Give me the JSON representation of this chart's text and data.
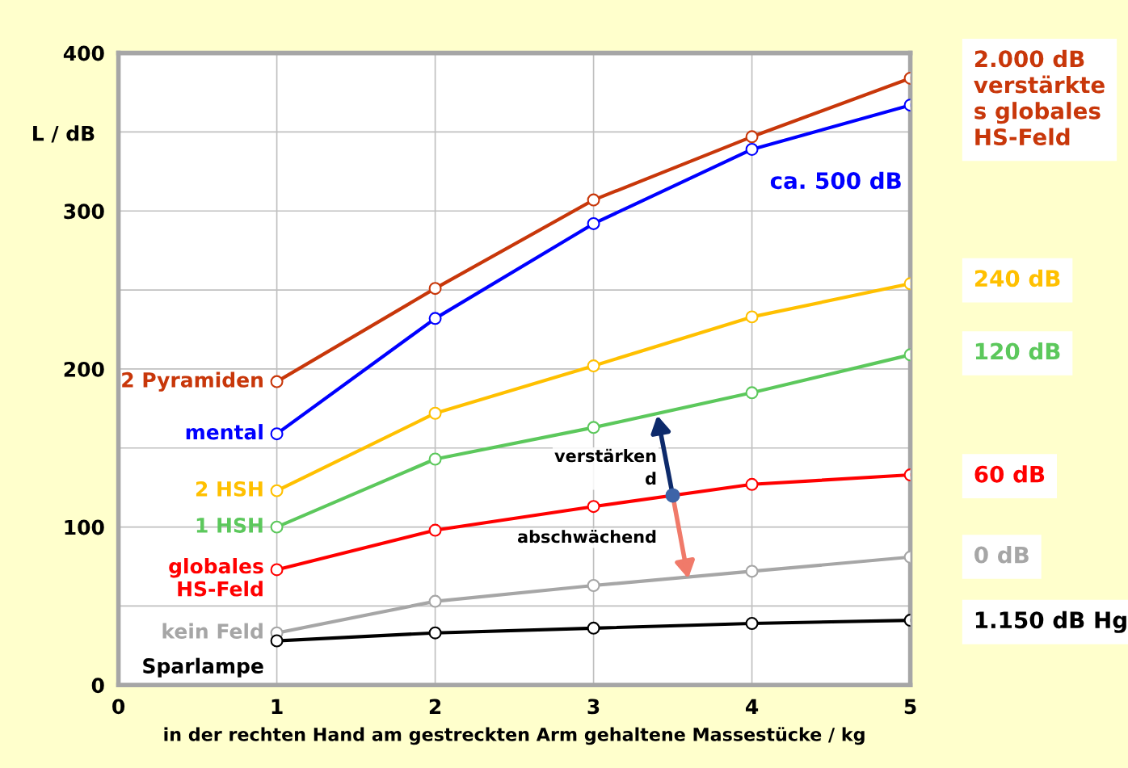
{
  "chart_data": {
    "type": "line",
    "xlabel": "in der rechten Hand am gestreckten Arm gehaltene Massestücke / kg",
    "ylabel": "L / dB",
    "x": [
      1,
      2,
      3,
      4,
      5
    ],
    "xlim": [
      0,
      5
    ],
    "xticks": [
      0,
      1,
      2,
      3,
      4,
      5
    ],
    "ylim": [
      0,
      400
    ],
    "yticks": [
      0,
      {
        "value": 50,
        "label": null
      },
      100,
      {
        "value": 150,
        "label": null
      },
      200,
      {
        "value": 250,
        "label": null
      },
      300,
      {
        "value": 350,
        "label": null
      },
      400
    ],
    "grid": true,
    "marker": "circle",
    "line_style": "solid",
    "legend": false,
    "series": [
      {
        "name": "2 Pyramiden",
        "color": "#c8370a",
        "values": [
          192,
          251,
          307,
          347,
          384
        ]
      },
      {
        "name": "mental",
        "color": "#0000ff",
        "values": [
          159,
          232,
          292,
          339,
          367
        ]
      },
      {
        "name": "2 HSH",
        "color": "#ffc000",
        "values": [
          123,
          172,
          202,
          233,
          254
        ]
      },
      {
        "name": "1 HSH",
        "color": "#5cc85c",
        "values": [
          100,
          143,
          163,
          185,
          209
        ]
      },
      {
        "name": "globales\nHS-Feld",
        "color": "#ff0000",
        "values": [
          73,
          98,
          113,
          127,
          133
        ]
      },
      {
        "name": "kein Feld",
        "color": "#a6a6a6",
        "values": [
          33,
          53,
          63,
          72,
          81
        ]
      },
      {
        "name": "Sparlampe",
        "color": "#000000",
        "values": [
          28,
          33,
          36,
          39,
          41
        ]
      }
    ],
    "annotations": [
      "ca. 500 dB",
      "2.000 dB\nverstärkte\ns globales\nHS-Feld",
      "240 dB",
      "120 dB",
      "60 dB",
      "0 dB",
      "1.150 dB Hg",
      {
        "text": "verstärken\nd",
        "x": 3.5,
        "y": 120
      },
      {
        "text": "abschwächend",
        "x": 3.5,
        "y": 120
      }
    ]
  }
}
